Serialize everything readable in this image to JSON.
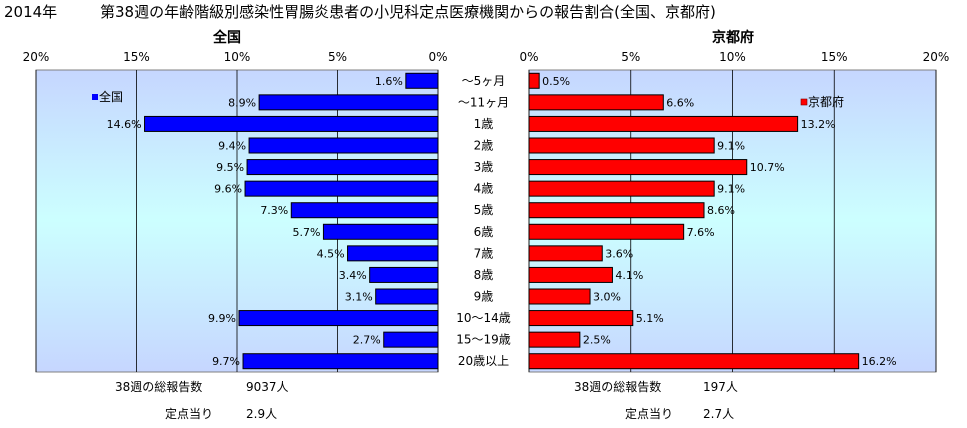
{
  "header": {
    "year": "2014年",
    "title": "第38週の年齢階級別感染性胃腸炎患者の小児科定点医療機関からの報告割合(全国、京都府)"
  },
  "chart_data": {
    "type": "bar",
    "orientation": "horizontal",
    "layout": "back-to-back",
    "categories": [
      "～5ヶ月",
      "～11ヶ月",
      "1歳",
      "2歳",
      "3歳",
      "4歳",
      "5歳",
      "6歳",
      "7歳",
      "8歳",
      "9歳",
      "10～14歳",
      "15～19歳",
      "20歳以上"
    ],
    "xlim": [
      0,
      20
    ],
    "ticks": [
      "20%",
      "15%",
      "10%",
      "5%",
      "0%"
    ],
    "ticks_right": [
      "0%",
      "5%",
      "10%",
      "15%",
      "20%"
    ],
    "grid": true,
    "series": [
      {
        "name": "全国",
        "panel_title": "全国",
        "side": "left",
        "color": "#0000ff",
        "values": [
          1.6,
          8.9,
          14.6,
          9.4,
          9.5,
          9.6,
          7.3,
          5.7,
          4.5,
          3.4,
          3.1,
          9.9,
          2.7,
          9.7
        ],
        "labels": [
          "1.6%",
          "8.9%",
          "14.6%",
          "9.4%",
          "9.5%",
          "9.6%",
          "7.3%",
          "5.7%",
          "4.5%",
          "3.4%",
          "3.1%",
          "9.9%",
          "2.7%",
          "9.7%"
        ],
        "legend": "全国"
      },
      {
        "name": "京都府",
        "panel_title": "京都府",
        "side": "right",
        "color": "#ff0000",
        "values": [
          0.5,
          6.6,
          13.2,
          9.1,
          10.7,
          9.1,
          8.6,
          7.6,
          3.6,
          4.1,
          3.0,
          5.1,
          2.5,
          16.2
        ],
        "labels": [
          "0.5%",
          "6.6%",
          "13.2%",
          "9.1%",
          "10.7%",
          "9.1%",
          "8.6%",
          "7.6%",
          "3.6%",
          "4.1%",
          "3.0%",
          "5.1%",
          "2.5%",
          "16.2%"
        ],
        "legend": "京都府"
      }
    ]
  },
  "footer": {
    "left": {
      "total_label": "38週の総報告数",
      "total_value": "9037人",
      "per_label": "定点当り",
      "per_value": "2.9人"
    },
    "right": {
      "total_label": "38週の総報告数",
      "total_value": "197人",
      "per_label": "定点当り",
      "per_value": "2.7人"
    }
  },
  "colors": {
    "plot_bg_top": "#c6d6ff",
    "plot_bg_mid": "#ccffff",
    "plot_bg_bottom": "#c6d6ff",
    "grid": "#000000",
    "bar_left": "#0000ff",
    "bar_right": "#ff0000"
  }
}
